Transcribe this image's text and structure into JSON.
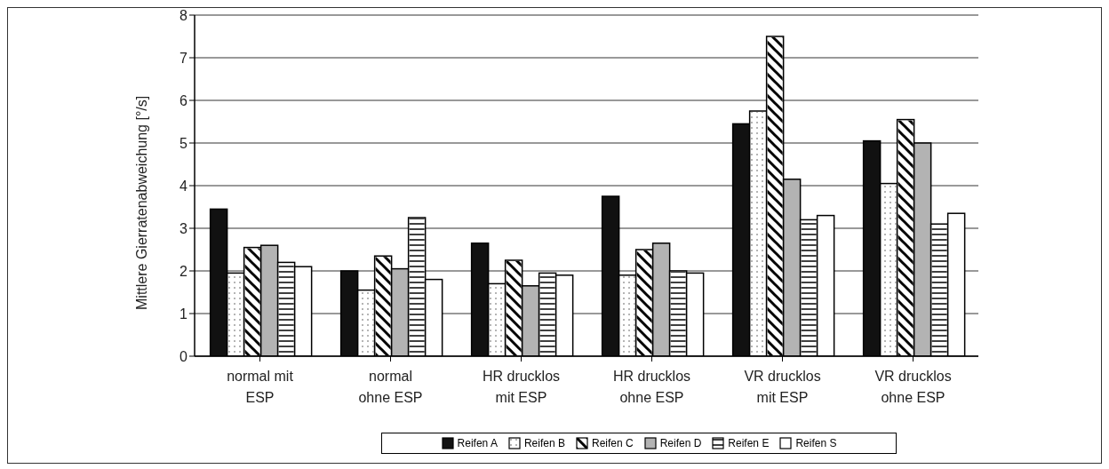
{
  "chart_data": {
    "type": "bar",
    "ylabel": "Mittlere Gierratenabweichung [°/s]",
    "categories": [
      "normal mit\nESP",
      "normal\nohne ESP",
      "HR drucklos\nmit ESP",
      "HR drucklos\nohne ESP",
      "VR drucklos\nmit ESP",
      "VR drucklos\nohne ESP"
    ],
    "series": [
      {
        "name": "Reifen A",
        "color": "#111111",
        "values": [
          3.45,
          2.0,
          2.65,
          3.75,
          5.45,
          5.05
        ]
      },
      {
        "name": "Reifen B",
        "color": "#ffffff",
        "values": [
          1.95,
          1.55,
          1.7,
          1.9,
          5.75,
          4.05
        ]
      },
      {
        "name": "Reifen C",
        "color": "#ffffff",
        "values": [
          2.55,
          2.35,
          2.25,
          2.5,
          7.5,
          5.55
        ]
      },
      {
        "name": "Reifen D",
        "color": "#b3b3b3",
        "values": [
          2.6,
          2.05,
          1.65,
          2.65,
          4.15,
          5.0
        ]
      },
      {
        "name": "Reifen E",
        "color": "#ffffff",
        "values": [
          2.2,
          3.25,
          1.95,
          2.0,
          3.2,
          3.1
        ]
      },
      {
        "name": "Reifen S",
        "color": "#ffffff",
        "values": [
          2.1,
          1.8,
          1.9,
          1.95,
          3.3,
          3.35
        ]
      }
    ],
    "ylim": [
      0,
      8
    ],
    "yticks": [
      0,
      1,
      2,
      3,
      4,
      5,
      6,
      7,
      8
    ],
    "grid": "y",
    "legend": "bottom"
  }
}
